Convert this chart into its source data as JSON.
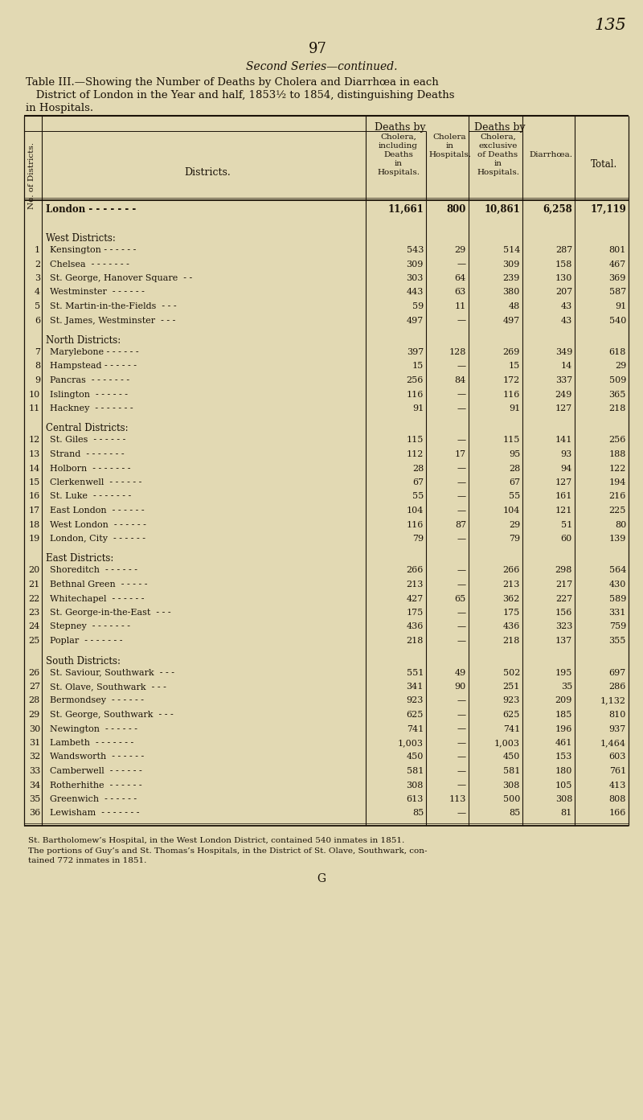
{
  "page_number": "135",
  "page_num_center": "97",
  "title_line1": "Second Series—continued.",
  "title_line2": "Table III.—Showing the Number of Deaths by Cholera and Diarrhœa in each",
  "title_line3": "   District of London in the Year and half, 1853½ to 1854, distinguishing Deaths",
  "title_line4": "in Hospitals.",
  "rows": [
    {
      "num": "",
      "district": "London - - - - - - -",
      "c1": "11,661",
      "c2": "800",
      "c3": "10,861",
      "c4": "6,258",
      "c5": "17,119",
      "section": "",
      "london": true
    },
    {
      "num": "",
      "district": "West Districts:",
      "c1": "",
      "c2": "",
      "c3": "",
      "c4": "",
      "c5": "",
      "section": "West Districts:",
      "london": false
    },
    {
      "num": "1",
      "district": "Kensington - - - - - -",
      "c1": "543",
      "c2": "29",
      "c3": "514",
      "c4": "287",
      "c5": "801",
      "section": "",
      "london": false
    },
    {
      "num": "2",
      "district": "Chelsea  - - - - - - -",
      "c1": "309",
      "c2": "—",
      "c3": "309",
      "c4": "158",
      "c5": "467",
      "section": "",
      "london": false
    },
    {
      "num": "3",
      "district": "St. George, Hanover Square  - -",
      "c1": "303",
      "c2": "64",
      "c3": "239",
      "c4": "130",
      "c5": "369",
      "section": "",
      "london": false
    },
    {
      "num": "4",
      "district": "Westminster  - - - - - -",
      "c1": "443",
      "c2": "63",
      "c3": "380",
      "c4": "207",
      "c5": "587",
      "section": "",
      "london": false
    },
    {
      "num": "5",
      "district": "St. Martin-in-the-Fields  - - -",
      "c1": "59",
      "c2": "11",
      "c3": "48",
      "c4": "43",
      "c5": "91",
      "section": "",
      "london": false
    },
    {
      "num": "6",
      "district": "St. James, Westminster  - - -",
      "c1": "497",
      "c2": "—",
      "c3": "497",
      "c4": "43",
      "c5": "540",
      "section": "",
      "london": false
    },
    {
      "num": "",
      "district": "North Districts:",
      "c1": "",
      "c2": "",
      "c3": "",
      "c4": "",
      "c5": "",
      "section": "North Districts:",
      "london": false
    },
    {
      "num": "7",
      "district": "Marylebone - - - - - -",
      "c1": "397",
      "c2": "128",
      "c3": "269",
      "c4": "349",
      "c5": "618",
      "section": "",
      "london": false
    },
    {
      "num": "8",
      "district": "Hampstead - - - - - -",
      "c1": "15",
      "c2": "—",
      "c3": "15",
      "c4": "14",
      "c5": "29",
      "section": "",
      "london": false
    },
    {
      "num": "9",
      "district": "Pancras  - - - - - - -",
      "c1": "256",
      "c2": "84",
      "c3": "172",
      "c4": "337",
      "c5": "509",
      "section": "",
      "london": false
    },
    {
      "num": "10",
      "district": "Islington  - - - - - -",
      "c1": "116",
      "c2": "—",
      "c3": "116",
      "c4": "249",
      "c5": "365",
      "section": "",
      "london": false
    },
    {
      "num": "11",
      "district": "Hackney  - - - - - - -",
      "c1": "91",
      "c2": "—",
      "c3": "91",
      "c4": "127",
      "c5": "218",
      "section": "",
      "london": false
    },
    {
      "num": "",
      "district": "Central Districts:",
      "c1": "",
      "c2": "",
      "c3": "",
      "c4": "",
      "c5": "",
      "section": "Central Districts:",
      "london": false
    },
    {
      "num": "12",
      "district": "St. Giles  - - - - - -",
      "c1": "115",
      "c2": "—",
      "c3": "115",
      "c4": "141",
      "c5": "256",
      "section": "",
      "london": false
    },
    {
      "num": "13",
      "district": "Strand  - - - - - - -",
      "c1": "112",
      "c2": "17",
      "c3": "95",
      "c4": "93",
      "c5": "188",
      "section": "",
      "london": false
    },
    {
      "num": "14",
      "district": "Holborn  - - - - - - -",
      "c1": "28",
      "c2": "—",
      "c3": "28",
      "c4": "94",
      "c5": "122",
      "section": "",
      "london": false
    },
    {
      "num": "15",
      "district": "Clerkenwell  - - - - - -",
      "c1": "67",
      "c2": "—",
      "c3": "67",
      "c4": "127",
      "c5": "194",
      "section": "",
      "london": false
    },
    {
      "num": "16",
      "district": "St. Luke  - - - - - - -",
      "c1": "55",
      "c2": "—",
      "c3": "55",
      "c4": "161",
      "c5": "216",
      "section": "",
      "london": false
    },
    {
      "num": "17",
      "district": "East London  - - - - - -",
      "c1": "104",
      "c2": "—",
      "c3": "104",
      "c4": "121",
      "c5": "225",
      "section": "",
      "london": false
    },
    {
      "num": "18",
      "district": "West London  - - - - - -",
      "c1": "116",
      "c2": "87",
      "c3": "29",
      "c4": "51",
      "c5": "80",
      "section": "",
      "london": false
    },
    {
      "num": "19",
      "district": "London, City  - - - - - -",
      "c1": "79",
      "c2": "—",
      "c3": "79",
      "c4": "60",
      "c5": "139",
      "section": "",
      "london": false
    },
    {
      "num": "",
      "district": "East Districts:",
      "c1": "",
      "c2": "",
      "c3": "",
      "c4": "",
      "c5": "",
      "section": "East Districts:",
      "london": false
    },
    {
      "num": "20",
      "district": "Shoreditch  - - - - - -",
      "c1": "266",
      "c2": "—",
      "c3": "266",
      "c4": "298",
      "c5": "564",
      "section": "",
      "london": false
    },
    {
      "num": "21",
      "district": "Bethnal Green  - - - - -",
      "c1": "213",
      "c2": "—",
      "c3": "213",
      "c4": "217",
      "c5": "430",
      "london": false,
      "section": ""
    },
    {
      "num": "22",
      "district": "Whitechapel  - - - - - -",
      "c1": "427",
      "c2": "65",
      "c3": "362",
      "c4": "227",
      "c5": "589",
      "section": "",
      "london": false
    },
    {
      "num": "23",
      "district": "St. George-in-the-East  - - -",
      "c1": "175",
      "c2": "—",
      "c3": "175",
      "c4": "156",
      "c5": "331",
      "section": "",
      "london": false
    },
    {
      "num": "24",
      "district": "Stepney  - - - - - - -",
      "c1": "436",
      "c2": "—",
      "c3": "436",
      "c4": "323",
      "c5": "759",
      "section": "",
      "london": false
    },
    {
      "num": "25",
      "district": "Poplar  - - - - - - -",
      "c1": "218",
      "c2": "—",
      "c3": "218",
      "c4": "137",
      "c5": "355",
      "section": "",
      "london": false
    },
    {
      "num": "",
      "district": "South Districts:",
      "c1": "",
      "c2": "",
      "c3": "",
      "c4": "",
      "c5": "",
      "section": "South Districts:",
      "london": false
    },
    {
      "num": "26",
      "district": "St. Saviour, Southwark  - - -",
      "c1": "551",
      "c2": "49",
      "c3": "502",
      "c4": "195",
      "c5": "697",
      "section": "",
      "london": false
    },
    {
      "num": "27",
      "district": "St. Olave, Southwark  - - -",
      "c1": "341",
      "c2": "90",
      "c3": "251",
      "c4": "35",
      "c5": "286",
      "section": "",
      "london": false
    },
    {
      "num": "28",
      "district": "Bermondsey  - - - - - -",
      "c1": "923",
      "c2": "—",
      "c3": "923",
      "c4": "209",
      "c5": "1,132",
      "section": "",
      "london": false
    },
    {
      "num": "29",
      "district": "St. George, Southwark  - - -",
      "c1": "625",
      "c2": "—",
      "c3": "625",
      "c4": "185",
      "c5": "810",
      "section": "",
      "london": false
    },
    {
      "num": "30",
      "district": "Newington  - - - - - -",
      "c1": "741",
      "c2": "—",
      "c3": "741",
      "c4": "196",
      "c5": "937",
      "section": "",
      "london": false
    },
    {
      "num": "31",
      "district": "Lambeth  - - - - - - -",
      "c1": "1,003",
      "c2": "—",
      "c3": "1,003",
      "c4": "461",
      "c5": "1,464",
      "section": "",
      "london": false
    },
    {
      "num": "32",
      "district": "Wandsworth  - - - - - -",
      "c1": "450",
      "c2": "—",
      "c3": "450",
      "c4": "153",
      "c5": "603",
      "section": "",
      "london": false
    },
    {
      "num": "33",
      "district": "Camberwell  - - - - - -",
      "c1": "581",
      "c2": "—",
      "c3": "581",
      "c4": "180",
      "c5": "761",
      "section": "",
      "london": false
    },
    {
      "num": "34",
      "district": "Rotherhithe  - - - - - -",
      "c1": "308",
      "c2": "—",
      "c3": "308",
      "c4": "105",
      "c5": "413",
      "section": "",
      "london": false
    },
    {
      "num": "35",
      "district": "Greenwich  - - - - - -",
      "c1": "613",
      "c2": "113",
      "c3": "500",
      "c4": "308",
      "c5": "808",
      "section": "",
      "london": false
    },
    {
      "num": "36",
      "district": "Lewisham  - - - - - - -",
      "c1": "85",
      "c2": "—",
      "c3": "85",
      "c4": "81",
      "c5": "166",
      "section": "",
      "london": false
    }
  ],
  "footnote1": "St. Bartholomew’s Hospital, in the West London District, contained 540 inmates in 1851.",
  "footnote2a": "The portions of Guy’s and St. Thomas’s Hospitals, in the District of St. Olave, Southwark, con-",
  "footnote2b": "tained 772 inmates in 1851.",
  "footnote_g": "G",
  "bg_color": "#e2d9b3",
  "text_color": "#1a1208"
}
